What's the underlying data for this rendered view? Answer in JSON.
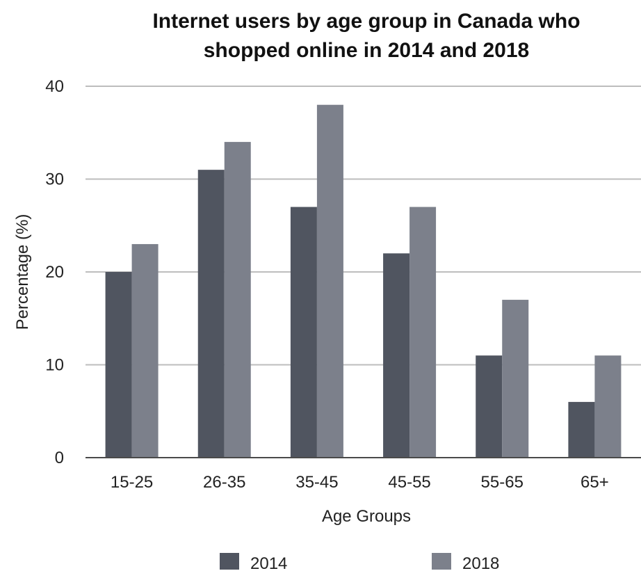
{
  "chart_data": {
    "type": "bar",
    "title": [
      "Internet users by age group in Canada who",
      "shopped online in 2014 and 2018"
    ],
    "xlabel": "Age Groups",
    "ylabel": "Percentage (%)",
    "categories": [
      "15-25",
      "26-35",
      "35-45",
      "45-55",
      "55-65",
      "65+"
    ],
    "series": [
      {
        "name": "2014",
        "values": [
          20,
          31,
          27,
          22,
          11,
          6
        ],
        "color": "#505560"
      },
      {
        "name": "2018",
        "values": [
          23,
          34,
          38,
          27,
          17,
          11
        ],
        "color": "#7c808b"
      }
    ],
    "ylim": [
      0,
      40
    ],
    "yticks": [
      0,
      10,
      20,
      30,
      40
    ],
    "grid": true,
    "legend_position": "bottom"
  }
}
